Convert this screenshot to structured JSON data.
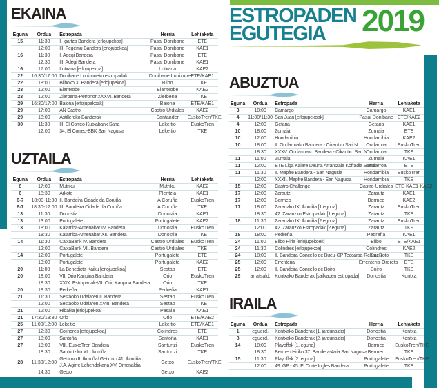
{
  "logo": {
    "line1": "ESTROPADEN",
    "line2": "EGUTEGIA",
    "year": "2019"
  },
  "colors": {
    "frame_teal": "#0e7e8c",
    "top_green": "#7cbc41",
    "logo_teal": "#17818f",
    "year_green": "#3ba336",
    "lime": "#9cc33b",
    "oar_blue": "#8cc2d5",
    "row_line": "#cfe1e5"
  },
  "columns": [
    "Eguna",
    "Ordua",
    "Estropada",
    "Herria",
    "Lehiaketa"
  ],
  "months": [
    {
      "name": "EKAINA",
      "rows": [
        [
          "15",
          "11:30",
          "I. Igartza Bandera [erlojupekoa]",
          "Pasai Donibane",
          "ETE"
        ],
        [
          "",
          "12:00",
          "III. Fegemu Bandera [erlojupekoa]",
          "Pasai Donibane",
          "KAE1"
        ],
        [
          "16",
          "11:30",
          "I. Adegi Bandera",
          "Pasai Donibane",
          "ETE"
        ],
        [
          "",
          "12:30",
          "III. Adegi Bandera",
          "Pasai Donibane",
          "KAE1"
        ],
        [
          "16",
          "17:00",
          "Lutxana [erlojupekoa]",
          "Lutxana",
          "KAE2"
        ],
        [
          "22",
          "16:30/17:00",
          "Donibane Lohizuneko estropadak",
          "Donibane Lohizune",
          "ETE/KAE1"
        ],
        [
          "22",
          "18:00",
          "Bilboko X. Bandera [erlojupekoa]",
          "Bilbo",
          "TKE"
        ],
        [
          "23",
          "12:00",
          "Elantxobe",
          "Elantxobe",
          "KAE2"
        ],
        [
          "23",
          "12:00",
          "Zierbena-Petronor XXXVI. Bandera",
          "Zierbena",
          "TKE"
        ],
        [
          "29",
          "16:30/17:00",
          "Baiona [erlojupekoak]",
          "Baiona",
          "ETE/KAE1"
        ],
        [
          "29",
          "17:00",
          "AN Castro",
          "Castro Urdiales",
          "KAE2"
        ],
        [
          "29",
          "18:00",
          "Astilleroko Banderak",
          "Santander",
          "EuskoTren/TKE"
        ],
        [
          "30",
          "11:30",
          "III. El Correo-Kutxabank Saria",
          "Lekeitio",
          "EuskoTren"
        ],
        [
          "",
          "12:00",
          "34. El Correo-BBK Sari Nagusia",
          "Lekeitio",
          "TKE"
        ]
      ]
    },
    {
      "name": "UZTAILA",
      "rows": [
        [
          "6",
          "17:00",
          "Mutriku",
          "Mutriku",
          "KAE2"
        ],
        [
          "6",
          "18:30",
          "Arkote",
          "Plentzia",
          "KAE1"
        ],
        [
          "6-7",
          "18:00-11:30",
          "II. Bandeira Cidade da Coruña",
          "A Coruña",
          "EuskoTren"
        ],
        [
          "6-7",
          "18:30-12:00",
          "III. Bandeira Cidade da Coruña",
          "A Coruña",
          "TKE"
        ],
        [
          "13",
          "11:30",
          "Donostia",
          "Donostia",
          "KAE1"
        ],
        [
          "13",
          "13:00",
          "Portugalete",
          "Portugalete",
          "KAE2"
        ],
        [
          "13",
          "18:00",
          "Kaiarriba-Amenabar IV. Bandera",
          "Donostia",
          "EuskoTren"
        ],
        [
          "",
          "18:30",
          "Kaiarriba-Amenabar XII. Bandera",
          "Donostia",
          "TKE"
        ],
        [
          "14",
          "11:30",
          "CaixaBank IV. Bandera",
          "Castro Urdiales",
          "EuskoTren"
        ],
        [
          "",
          "12:00",
          "CaixaBank VII. Bandera",
          "Castro Urdiales",
          "TKE"
        ],
        [
          "14",
          "12:00",
          "Portugalete",
          "Portugalete",
          "ETE"
        ],
        [
          "",
          "13:00",
          "Portugalete",
          "Portugalete",
          "KAE2"
        ],
        [
          "20",
          "11:00",
          "La Benedicta-Kaiku [erlojupekoa]",
          "Sestao",
          "ETE"
        ],
        [
          "20",
          "18:00",
          "VII. Orio Kanpina Bandera",
          "Orio",
          "EuskoTren"
        ],
        [
          "",
          "18:30",
          "XXIX. Estropadak-VII. Orio Kanpina Bandera",
          "Orio",
          "TKE"
        ],
        [
          "20",
          "18:30",
          "Pedreña",
          "Pedreña",
          "KAE1"
        ],
        [
          "21",
          "11:30",
          "Sestaoko Udalaren II. Bandera",
          "Sestao",
          "EuskoTren"
        ],
        [
          "",
          "12:00",
          "Sestaoko Udalaren XVIII. Bandera",
          "Sestao",
          "TKE"
        ],
        [
          "21",
          "12:00",
          "Hibaika [erlojupekoa]",
          "Pasaia",
          "KAE1"
        ],
        [
          "21",
          "17:30/18:30",
          "Orio",
          "Orio",
          "ETE/KAE2"
        ],
        [
          "25",
          "11:00/12:00",
          "Lekeitio",
          "Lekeitio",
          "ETE/KAE1"
        ],
        [
          "27",
          "12:30",
          "Colindres [erlojupekoa]",
          "Colindres",
          "ETE"
        ],
        [
          "27",
          "18:00",
          "Santoña",
          "Santoña",
          "KAE1"
        ],
        [
          "27",
          "18:00",
          "VIII. EuskoTren Bandera",
          "Santurtzi",
          "EuskoTren"
        ],
        [
          "",
          "18:30",
          "Santurtziko XL. Ikurriña",
          "Santurtzi",
          "TKE"
        ],
        [
          "28",
          "11:30/12:00",
          "Getxoko II. Ikurriña/ Getxoko 41. Ikurriña\nJ.A. Agirre Lehendakaria XV. Omenaldia",
          "Getxo",
          "EuskoTren/TKE"
        ],
        [
          "",
          "14:30",
          "Getxo",
          "Getxo",
          "KAE2"
        ]
      ]
    },
    {
      "name": "ABUZTUA",
      "rows": [
        [
          "3",
          "18:00",
          "Camargo",
          "Camargo",
          "KAE1"
        ],
        [
          "4",
          "11:00/11:30",
          "San Juan [erlojupekoak]",
          "Pasai Donibane",
          "ETE/KAE2"
        ],
        [
          "4",
          "12:00",
          "Getaria",
          "Getaria",
          "KAE1"
        ],
        [
          "10",
          "18:00",
          "Zumaia",
          "Zumaia",
          "ETE"
        ],
        [
          "10",
          "12:00",
          "Hondarribia",
          "Hondarribia",
          "KAE2"
        ],
        [
          "10",
          "18:00",
          "II. Ondarroako Bandera - Cikautxo Sari N.",
          "Ondarroa",
          "EuskoTren"
        ],
        [
          "",
          "18:30",
          "XXXV. Ondarroako Bandera - Cikautxo Sari N.",
          "Ondarroa",
          "TKE"
        ],
        [
          "11",
          "11:00",
          "Zumaia",
          "Zumaia",
          "KAE1"
        ],
        [
          "11",
          "12:00",
          "ETE Liga Kalare Deuna Arrantzale Kofradia Saria",
          "Ondarroa",
          "ETE"
        ],
        [
          "11",
          "11:30",
          "II. Mapfre Bandera - Sari Nagusia",
          "Hondarribia",
          "EuskoTren"
        ],
        [
          "",
          "12:00",
          "XXXII. Mapfre Bandera - Sari Nagusia",
          "Hondarribia",
          "TKE"
        ],
        [
          "15",
          "12:00",
          "Castro Challenge",
          "Castro Urdiales",
          "ETE-KAE1-KAE2"
        ],
        [
          "17",
          "12:00",
          "Zarautz",
          "Zarautz",
          "KAE1"
        ],
        [
          "17",
          "12:00",
          "Bermeo",
          "Bermeo",
          "KAE2"
        ],
        [
          "17",
          "18:00",
          "Zarauzko IX. Ikurriña [1.eguna]",
          "Zarautz",
          "EuskoTren"
        ],
        [
          "",
          "18:30",
          "42. Zarauzko Estropadak [1.eguna]",
          "Zarautz",
          "TKE"
        ],
        [
          "18",
          "11:30",
          "Zarauzko IX. Ikurriña [2.eguna]",
          "Zarautz",
          "EuskoTren"
        ],
        [
          "",
          "12:00",
          "42. Zarauzko Estropadak [2.eguna]",
          "Zarautz",
          "TKE"
        ],
        [
          "18",
          "18:00",
          "Pedreña",
          "Pedreña",
          "KAE1"
        ],
        [
          "24",
          "11:00",
          "Bilbo Hiria [erlojupekoek]",
          "Bilbo",
          "ETE/KAE1"
        ],
        [
          "24",
          "11:30",
          "Colindres [erlojupekoa]",
          "Colindres",
          "KAE2"
        ],
        [
          "24",
          "18:00",
          "II. Bandeira Concello de Bueu-GP Teccarsa-Rehau-Roto",
          "Bueu",
          "TKE"
        ],
        [
          "25",
          "12:00",
          "Errenteria",
          "Errenteria-Orereta",
          "ETE"
        ],
        [
          "25",
          "12:00",
          "II. Bandeira Concello de Boiro",
          "Boiro",
          "TKE"
        ],
        [
          "29",
          "arratsald.",
          "Kontxako Banderak [sailkapen estropada]",
          "Donostia",
          "Kontxa"
        ]
      ]
    },
    {
      "name": "IRAILA",
      "rows": [
        [
          "1",
          "eguerd.",
          "Kontxako Banderak [1. jardunaldia]",
          "Donostia",
          "Kontxa"
        ],
        [
          "8",
          "eguerd.",
          "Kontxako Banderak [2. jardunaldia]",
          "Donostia",
          "Kontxa"
        ],
        [
          "14",
          "18:00",
          "Playoffak [1. eguna]",
          "Bermeo",
          "EuskoTren/TKE"
        ],
        [
          "",
          "18:30",
          "Bermeo Hiriko 37. Bandera-Avia Sari Nagusia",
          "Bermeo",
          "TKE"
        ],
        [
          "15",
          "11:30",
          "Playoffak [2. eguna]",
          "Portugalete",
          "EuskoTren/TKE"
        ],
        [
          "",
          "12:00",
          "49. GP - 45. El Corte Ingles Bandera",
          "Portugalete",
          "TKE"
        ]
      ]
    }
  ]
}
